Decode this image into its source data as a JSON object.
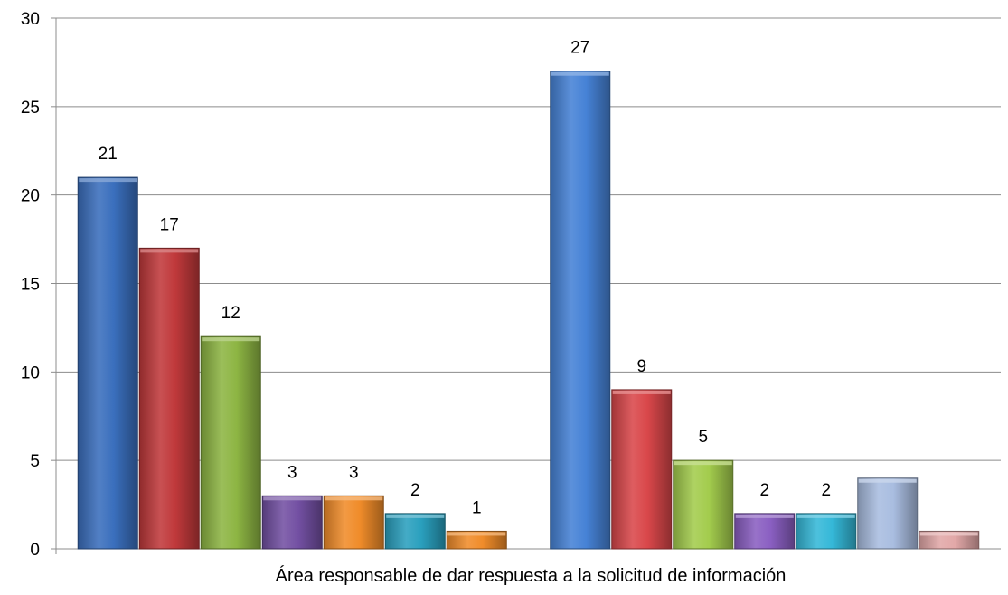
{
  "chart_data": {
    "type": "bar",
    "xlabel": "Área responsable de dar respuesta a la solicitud de información",
    "ylabel": "",
    "ylim": [
      0,
      30
    ],
    "yticks": [
      0,
      5,
      10,
      15,
      20,
      25,
      30
    ],
    "grid": true,
    "groups": [
      {
        "values": [
          21,
          17,
          12,
          3,
          3,
          2,
          1
        ],
        "colors": [
          "#3a6fbd",
          "#c0393b",
          "#8db543",
          "#7350a3",
          "#f08c2a",
          "#2aa0be",
          "#f08c2a"
        ],
        "labels": [
          "21",
          "17",
          "12",
          "3",
          "3",
          "2",
          "1"
        ]
      },
      {
        "values": [
          27,
          9,
          5,
          2,
          2,
          4,
          1
        ],
        "colors": [
          "#4682d6",
          "#d9474a",
          "#a3cc4d",
          "#8a5fc2",
          "#35b8d8",
          "#a9bde0",
          "#e2a8a8"
        ],
        "labels": [
          "27",
          "9",
          "5",
          "2",
          "2",
          "",
          ""
        ]
      }
    ]
  }
}
